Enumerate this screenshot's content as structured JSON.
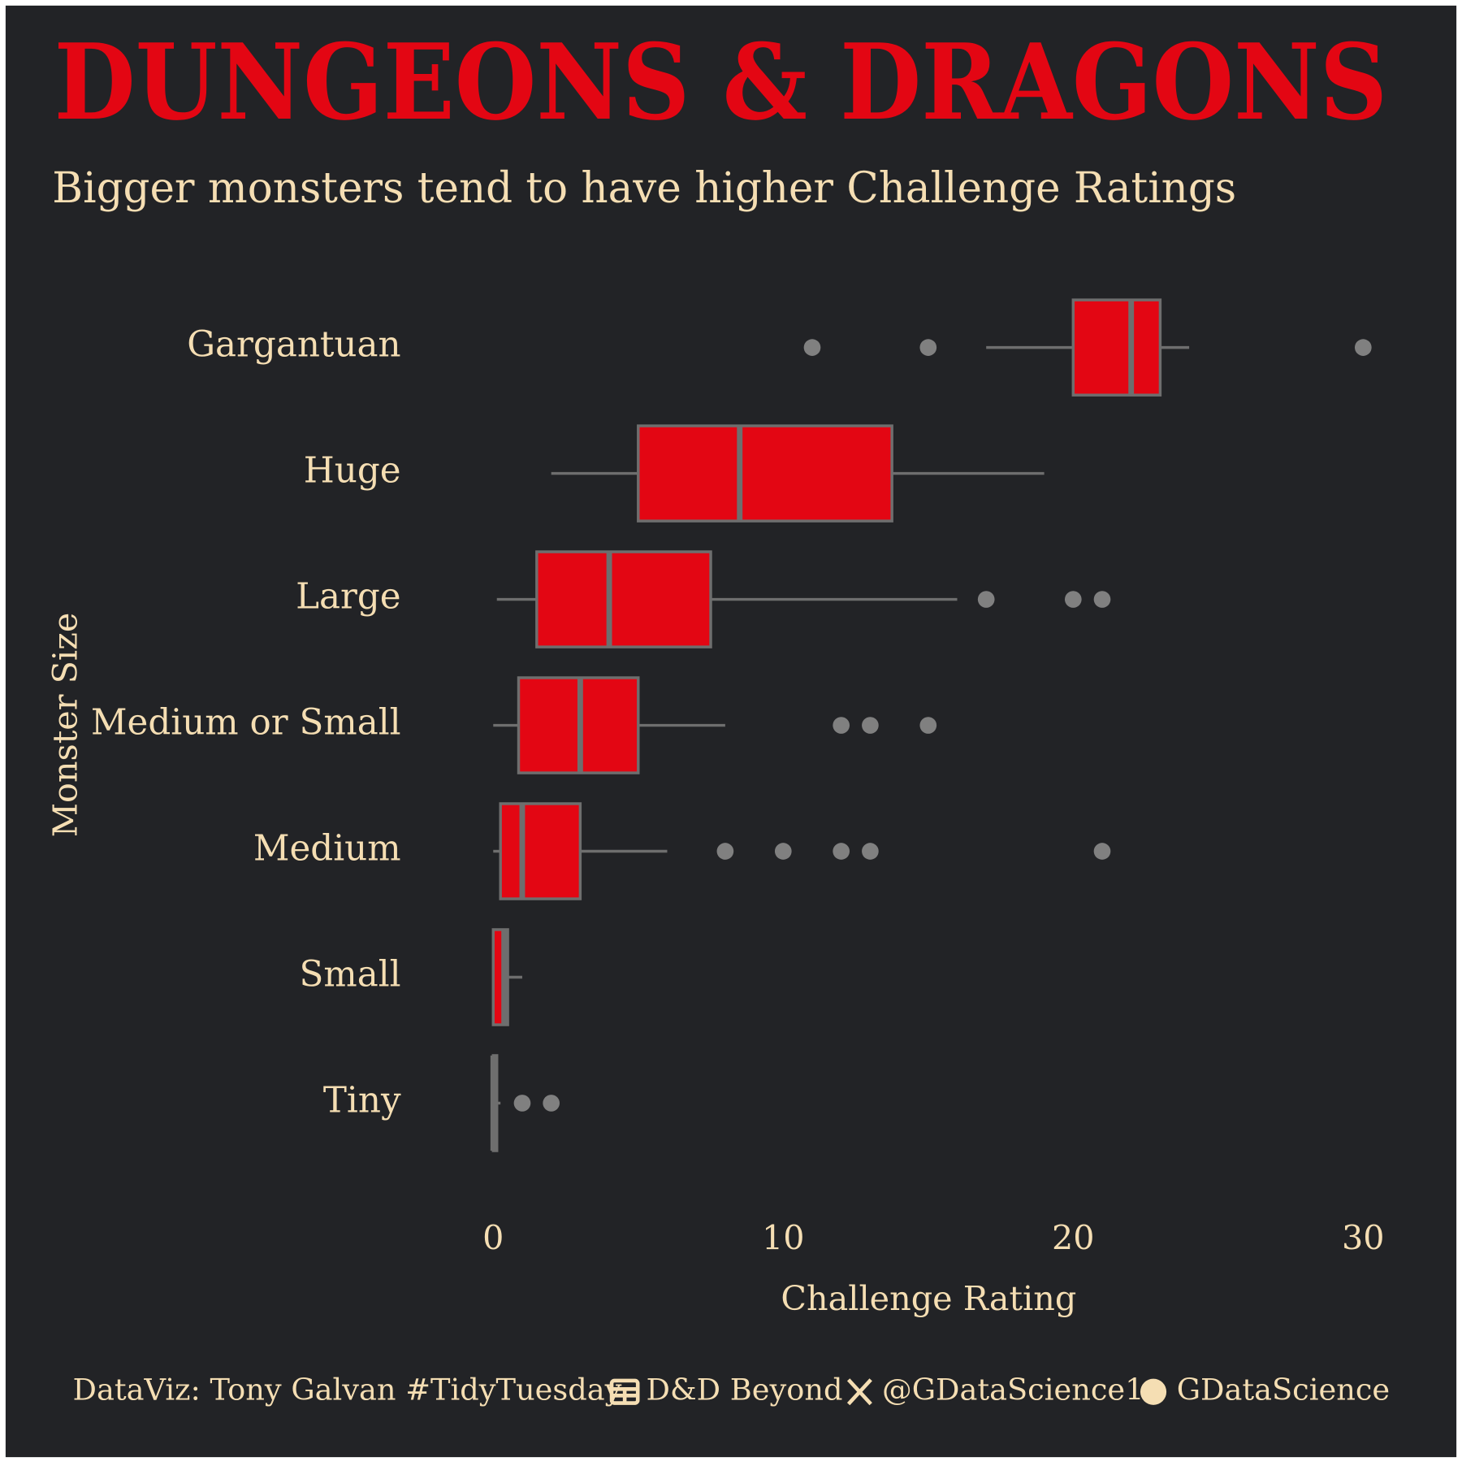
{
  "chart_data": {
    "type": "box",
    "title": "DUNGEONS & DRAGONS",
    "subtitle": "Bigger monsters tend to have higher Challenge Ratings",
    "x_label": "Challenge Rating",
    "y_label": "Monster Size",
    "categories": [
      "Gargantuan",
      "Huge",
      "Large",
      "Medium or Small",
      "Medium",
      "Small",
      "Tiny"
    ],
    "boxes": [
      {
        "whislo": 17,
        "q1": 20,
        "med": 22,
        "q3": 23,
        "whishi": 24,
        "fliers": [
          11,
          15,
          30
        ]
      },
      {
        "whislo": 2,
        "q1": 5,
        "med": 8.5,
        "q3": 13.75,
        "whishi": 19,
        "fliers": []
      },
      {
        "whislo": 0.125,
        "q1": 1.5,
        "med": 4,
        "q3": 7.5,
        "whishi": 16,
        "fliers": [
          17,
          20,
          21
        ]
      },
      {
        "whislo": 0,
        "q1": 0.875,
        "med": 3,
        "q3": 5,
        "whishi": 8,
        "fliers": [
          12,
          13,
          15
        ]
      },
      {
        "whislo": 0,
        "q1": 0.25,
        "med": 1,
        "q3": 3,
        "whishi": 6,
        "fliers": [
          8,
          10,
          12,
          13,
          21
        ]
      },
      {
        "whislo": 0,
        "q1": 0,
        "med": 0.375,
        "q3": 0.5,
        "whishi": 1,
        "fliers": []
      },
      {
        "whislo": 0,
        "q1": 0,
        "med": 0,
        "q3": 0.125,
        "whishi": 0.25,
        "fliers": [
          1,
          2
        ]
      }
    ],
    "xlim": [
      0,
      30
    ],
    "xticks": [
      0,
      10,
      20,
      30
    ],
    "box_color": "#e30613",
    "line_color": "#6e6e6e",
    "flier_color": "#808080",
    "caption": [
      "DataViz: Tony Galvan #TidyTuesday",
      "D&D Beyond",
      "@GDataScience1",
      "GDataScience"
    ]
  }
}
